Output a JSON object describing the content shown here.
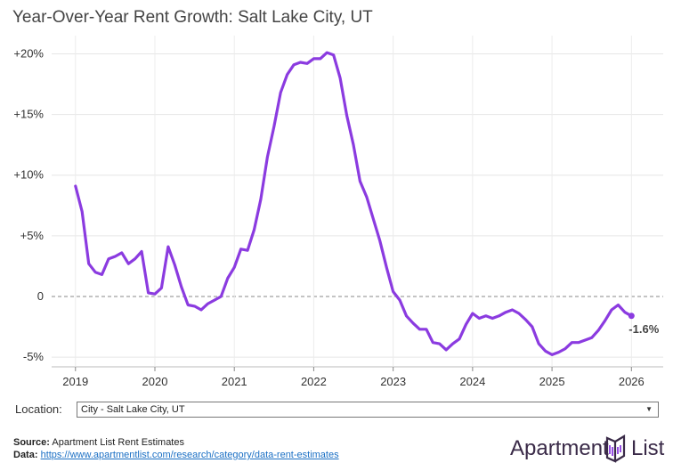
{
  "chart_data": {
    "type": "line",
    "title": "Year-Over-Year Rent Growth: Salt Lake City, UT",
    "xlabel": "",
    "ylabel": "",
    "x_ticks": [
      2019,
      2020,
      2021,
      2022,
      2023,
      2024,
      2025,
      2026
    ],
    "y_ticks": [
      {
        "value": 20,
        "label": "+20%"
      },
      {
        "value": 15,
        "label": "+15%"
      },
      {
        "value": 10,
        "label": "+10%"
      },
      {
        "value": 5,
        "label": "+5%"
      },
      {
        "value": 0,
        "label": "0"
      },
      {
        "value": -5,
        "label": "-5%"
      }
    ],
    "xlim": [
      2018.7,
      2026.4
    ],
    "ylim": [
      -5.8,
      21.5
    ],
    "grid": true,
    "series": [
      {
        "name": "City - Salt Lake City, UT",
        "color": "#8b3be0",
        "x": [
          2019.0,
          2019.083,
          2019.167,
          2019.25,
          2019.333,
          2019.417,
          2019.5,
          2019.583,
          2019.667,
          2019.75,
          2019.833,
          2019.917,
          2020.0,
          2020.083,
          2020.167,
          2020.25,
          2020.333,
          2020.417,
          2020.5,
          2020.583,
          2020.667,
          2020.75,
          2020.833,
          2020.917,
          2021.0,
          2021.083,
          2021.167,
          2021.25,
          2021.333,
          2021.417,
          2021.5,
          2021.583,
          2021.667,
          2021.75,
          2021.833,
          2021.917,
          2022.0,
          2022.083,
          2022.167,
          2022.25,
          2022.333,
          2022.417,
          2022.5,
          2022.583,
          2022.667,
          2022.75,
          2022.833,
          2022.917,
          2023.0,
          2023.083,
          2023.167,
          2023.25,
          2023.333,
          2023.417,
          2023.5,
          2023.583,
          2023.667,
          2023.75,
          2023.833,
          2023.917,
          2024.0,
          2024.083,
          2024.167,
          2024.25,
          2024.333,
          2024.417,
          2024.5,
          2024.583,
          2024.667,
          2024.75,
          2024.833,
          2024.917,
          2025.0,
          2025.083,
          2025.167,
          2025.25,
          2025.333,
          2025.417,
          2025.5,
          2025.583,
          2025.667,
          2025.75,
          2025.833,
          2025.917,
          2026.0
        ],
        "values": [
          9.1,
          7.0,
          2.7,
          2.0,
          1.8,
          3.1,
          3.3,
          3.6,
          2.7,
          3.1,
          3.7,
          0.3,
          0.2,
          0.7,
          4.1,
          2.6,
          0.8,
          -0.7,
          -0.8,
          -1.1,
          -0.6,
          -0.3,
          0.0,
          1.5,
          2.4,
          3.9,
          3.8,
          5.5,
          8.0,
          11.5,
          14.0,
          16.8,
          18.3,
          19.1,
          19.3,
          19.2,
          19.6,
          19.6,
          20.1,
          19.9,
          18.0,
          14.9,
          12.5,
          9.5,
          8.2,
          6.4,
          4.6,
          2.4,
          0.4,
          -0.3,
          -1.6,
          -2.2,
          -2.7,
          -2.7,
          -3.8,
          -3.9,
          -4.4,
          -3.9,
          -3.5,
          -2.3,
          -1.4,
          -1.8,
          -1.6,
          -1.8,
          -1.6,
          -1.3,
          -1.1,
          -1.4,
          -1.9,
          -2.5,
          -3.9,
          -4.5,
          -4.8,
          -4.6,
          -4.3,
          -3.8,
          -3.8,
          -3.6,
          -3.4,
          -2.8,
          -2.0,
          -1.1,
          -0.7,
          -1.3,
          -1.6
        ]
      }
    ],
    "annotations": [
      {
        "text": "-1.6%",
        "x": 2026.0,
        "y": -1.6
      }
    ]
  },
  "controls": {
    "location_label": "Location:",
    "location_value": "City - Salt Lake City, UT"
  },
  "footer": {
    "source_label": "Source:",
    "source_text": "Apartment List Rent Estimates",
    "data_label": "Data:",
    "data_link": "https://www.apartmentlist.com/research/category/data-rent-estimates"
  },
  "logo": {
    "word1": "Apartment",
    "word2": "List"
  }
}
